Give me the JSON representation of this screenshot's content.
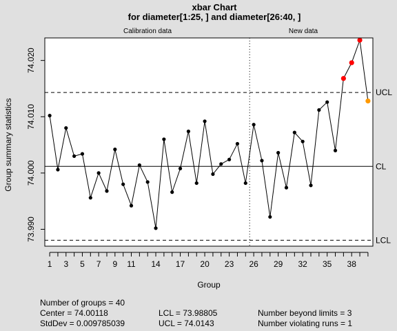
{
  "chart_data": {
    "type": "line",
    "title": "xbar Chart",
    "subtitle": "for diameter[1:25, ] and diameter[26:40, ]",
    "xlabel": "Group",
    "ylabel": "Group summary statistics",
    "section_labels": [
      "Calibration data",
      "New data"
    ],
    "x": [
      1,
      2,
      3,
      4,
      5,
      6,
      7,
      8,
      9,
      10,
      11,
      12,
      13,
      14,
      15,
      16,
      17,
      18,
      19,
      20,
      21,
      22,
      23,
      24,
      25,
      26,
      27,
      28,
      29,
      30,
      31,
      32,
      33,
      34,
      35,
      36,
      37,
      38,
      39,
      40
    ],
    "values": [
      74.0102,
      74.0006,
      74.008,
      74.003,
      74.0034,
      73.9956,
      74.0,
      73.9968,
      74.0042,
      73.998,
      73.9942,
      74.0014,
      73.9984,
      73.9902,
      74.006,
      73.9966,
      74.0008,
      74.0074,
      73.9982,
      74.0092,
      73.9998,
      74.0016,
      74.0024,
      74.0052,
      73.9982,
      74.0086,
      74.0022,
      73.9922,
      74.0036,
      73.9974,
      74.0072,
      74.0056,
      73.9978,
      74.0112,
      74.0126,
      74.004,
      74.0168,
      74.0196,
      74.0236,
      74.0128
    ],
    "point_status": [
      "n",
      "n",
      "n",
      "n",
      "n",
      "n",
      "n",
      "n",
      "n",
      "n",
      "n",
      "n",
      "n",
      "n",
      "n",
      "n",
      "n",
      "n",
      "n",
      "n",
      "n",
      "n",
      "n",
      "n",
      "n",
      "n",
      "n",
      "n",
      "n",
      "n",
      "n",
      "n",
      "n",
      "n",
      "n",
      "n",
      "beyond",
      "beyond",
      "beyond",
      "violating"
    ],
    "status_colors": {
      "n": "#000000",
      "beyond": "#ff0000",
      "violating": "#ff9900"
    },
    "calibration_groups": 25,
    "ylim": [
      73.987,
      74.024
    ],
    "xlim": [
      0.4,
      40.6
    ],
    "y_ticks": [
      "73.990",
      "74.000",
      "74.010",
      "74.020"
    ],
    "x_ticks": [
      "1",
      "3",
      "5",
      "7",
      "9",
      "11",
      "14",
      "17",
      "20",
      "23",
      "26",
      "29",
      "32",
      "35",
      "38"
    ],
    "limits": {
      "ucl": 74.0143,
      "cl": 74.00118,
      "lcl": 73.98805
    },
    "limit_labels": {
      "ucl": "UCL",
      "cl": "CL",
      "lcl": "LCL"
    },
    "stats": {
      "groups": "Number of groups = 40",
      "center": "Center = 74.00118",
      "stddev": "StdDev = 0.009785039",
      "lcl": "LCL = 73.98805",
      "ucl": "UCL = 74.0143",
      "beyond": "Number beyond limits = 3",
      "violating": "Number violating runs = 1"
    }
  }
}
